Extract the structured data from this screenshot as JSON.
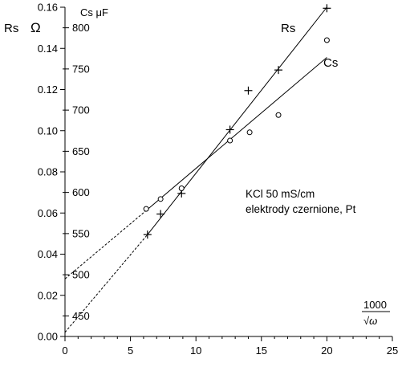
{
  "chart_data": {
    "type": "scatter",
    "x": {
      "label_numerator": "1000",
      "label_denominator": "√ω",
      "lim": [
        0,
        25
      ],
      "ticks": [
        0,
        5,
        10,
        15,
        20,
        25
      ]
    },
    "y_left": {
      "label": "Rs",
      "unit": "Ω",
      "lim": [
        0,
        0.16
      ],
      "ticks": [
        0.0,
        0.02,
        0.04,
        0.06,
        0.08,
        0.1,
        0.12,
        0.14,
        0.16
      ],
      "tick_labels": [
        "0.00",
        "0.02",
        "0.04",
        "0.06",
        "0.08",
        "0.10",
        "0.12",
        "0.14",
        "0.16"
      ]
    },
    "y_inner": {
      "label": "Cs μF",
      "lim": [
        425,
        825
      ],
      "ticks": [
        450,
        500,
        550,
        600,
        650,
        700,
        750,
        800
      ],
      "tick_labels": [
        "450",
        "500",
        "550",
        "600",
        "650",
        "700",
        "750",
        "800"
      ]
    },
    "annotations": [
      "KCl  50 mS/cm",
      "elektrody czernione, Pt"
    ],
    "grid": false,
    "series": [
      {
        "name": "Rs",
        "axis": "left",
        "marker": "plus",
        "x": [
          6.3,
          7.3,
          8.9,
          12.6,
          14.0,
          16.3,
          20.0
        ],
        "y": [
          0.0495,
          0.0595,
          0.0695,
          0.1005,
          0.1195,
          0.1295,
          0.1595
        ],
        "fit": {
          "x_range": [
            6.3,
            20.0
          ],
          "y_range": [
            0.0495,
            0.16
          ]
        },
        "extrapolation": {
          "x_range": [
            0,
            6.3
          ],
          "y_range": [
            0.002,
            0.0495
          ]
        }
      },
      {
        "name": "Cs",
        "axis": "inner",
        "marker": "circle",
        "x": [
          6.2,
          7.3,
          8.9,
          12.6,
          14.1,
          16.3,
          20.0
        ],
        "y": [
          580,
          592,
          605,
          663,
          673,
          694,
          785
        ],
        "fit": {
          "x_range": [
            6.2,
            20.0
          ],
          "y_range": [
            578,
            764
          ]
        },
        "extrapolation": {
          "x_range": [
            0,
            6.2
          ],
          "y_range": [
            495,
            578
          ]
        }
      }
    ]
  }
}
